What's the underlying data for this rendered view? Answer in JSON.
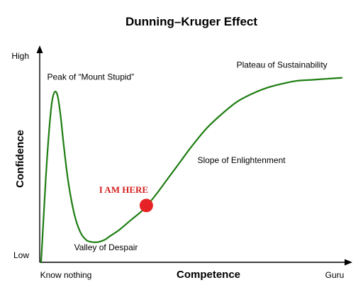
{
  "chart_data": {
    "type": "line",
    "title": "Dunning–Kruger Effect",
    "xlabel": "Competence",
    "ylabel": "Confidence",
    "x_ticks": [
      "Know nothing",
      "Guru"
    ],
    "y_ticks": [
      "Low",
      "High"
    ],
    "xlim": [
      0,
      100
    ],
    "ylim": [
      0,
      100
    ],
    "grid": false,
    "legend": "none",
    "series": [
      {
        "color": "#1e7d12",
        "x": [
          0,
          1.5,
          2.5,
          3.5,
          4.5,
          5.5,
          6.5,
          7.5,
          9,
          11,
          13,
          15,
          17,
          19,
          21,
          23,
          26,
          30,
          34,
          38,
          42,
          46,
          50,
          55,
          60,
          65,
          70,
          75,
          80,
          85,
          90,
          95,
          100
        ],
        "y": [
          0,
          40,
          62,
          78,
          84,
          82,
          72,
          58,
          40,
          24,
          15,
          11,
          10,
          10,
          11,
          13,
          16,
          21,
          26,
          33,
          41,
          49,
          57,
          66,
          73,
          79,
          83,
          86,
          88,
          89.5,
          90,
          90.5,
          91
        ]
      }
    ],
    "annotations": [
      {
        "text": "Peak of “Mount Stupid”",
        "x": 2,
        "y": 90
      },
      {
        "text": "Valley of Despair",
        "x": 11,
        "y": 6
      },
      {
        "text": "Slope of Enlightenment",
        "x": 52,
        "y": 49
      },
      {
        "text": "Plateau of Sustainability",
        "x": 65,
        "y": 96
      }
    ],
    "marker": {
      "label": "I AM HERE",
      "x": 35,
      "y": 28,
      "color": "#e62224",
      "label_color": "#d42020"
    }
  }
}
